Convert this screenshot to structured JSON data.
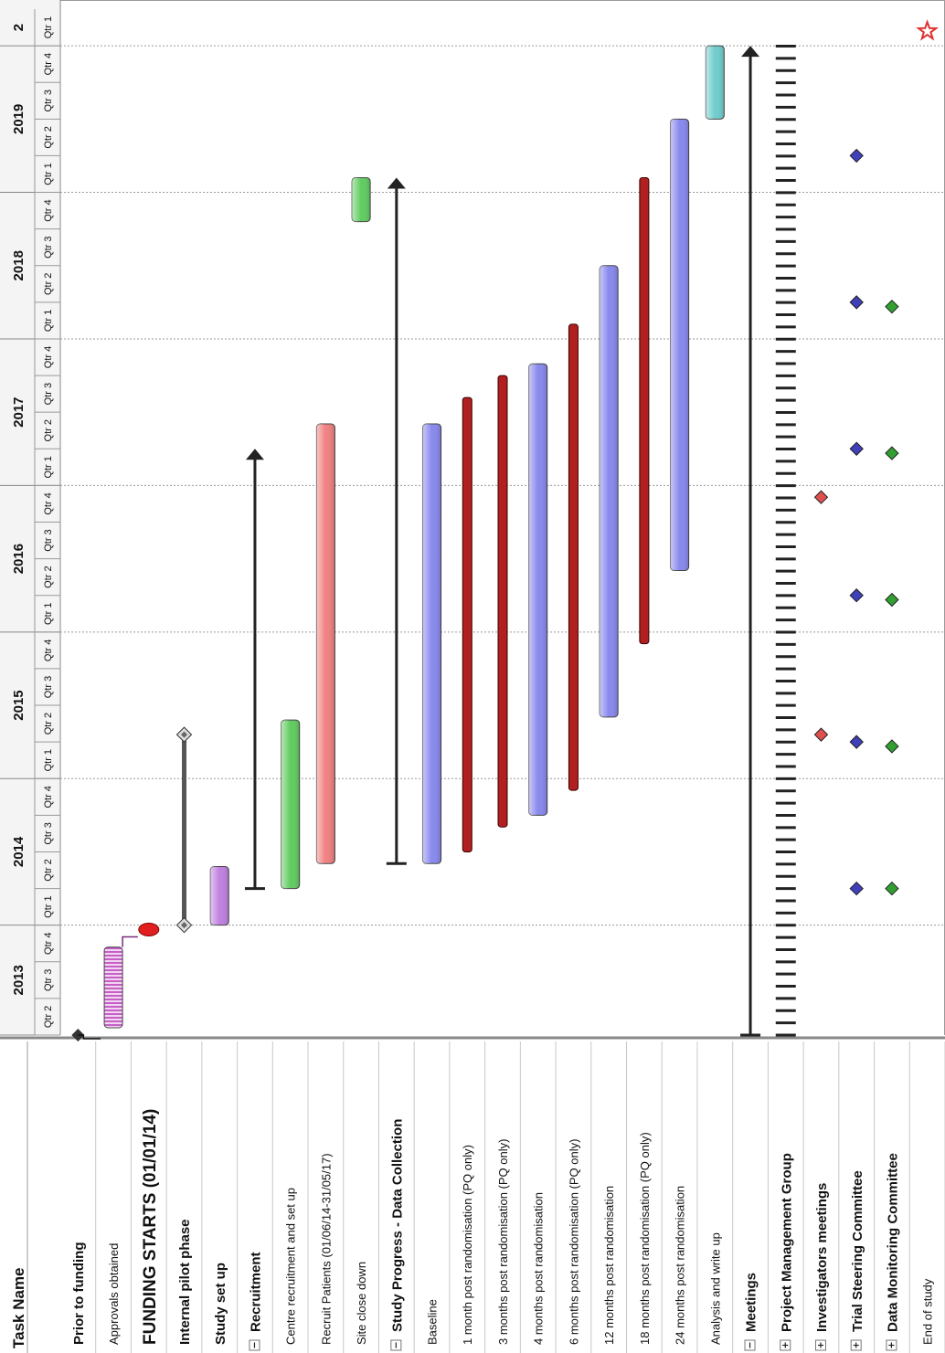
{
  "chart_data": {
    "type": "gantt",
    "orientation": "rotated 90 degrees clockwise (time runs from bottom to top, tasks from left to right)",
    "task_column_header": "Task Name",
    "timescale": {
      "years": [
        {
          "label": "2013",
          "quarters": [
            "Qtr 2",
            "Qtr 3",
            "Qtr 4"
          ]
        },
        {
          "label": "2014",
          "quarters": [
            "Qtr 1",
            "Qtr 2",
            "Qtr 3",
            "Qtr 4"
          ]
        },
        {
          "label": "2015",
          "quarters": [
            "Qtr 1",
            "Qtr 2",
            "Qtr 3",
            "Qtr 4"
          ]
        },
        {
          "label": "2016",
          "quarters": [
            "Qtr 1",
            "Qtr 2",
            "Qtr 3",
            "Qtr 4"
          ]
        },
        {
          "label": "2017",
          "quarters": [
            "Qtr 1",
            "Qtr 2",
            "Qtr 3",
            "Qtr 4"
          ]
        },
        {
          "label": "2018",
          "quarters": [
            "Qtr 1",
            "Qtr 2",
            "Qtr 3",
            "Qtr 4"
          ]
        },
        {
          "label": "2019",
          "quarters": [
            "Qtr 1",
            "Qtr 2",
            "Qtr 3",
            "Qtr 4"
          ]
        },
        {
          "label": "2",
          "quarters": [
            "Qtr 1"
          ]
        }
      ],
      "start": 2013.25,
      "end": 2020.25
    },
    "tasks": [
      {
        "name": "Prior to funding",
        "style": "normal",
        "toggle": "",
        "shape": "milestone",
        "date": 2013.25,
        "color": "#333333"
      },
      {
        "name": "Approvals obtained",
        "style": "small",
        "toggle": "",
        "shape": "hatched-bar",
        "start": 2013.3,
        "end": 2013.85,
        "color": "#cc44cc"
      },
      {
        "name": "FUNDING STARTS (01/01/14)",
        "style": "large",
        "toggle": "",
        "shape": "milestone",
        "date": 2013.97,
        "color": "#e02020"
      },
      {
        "name": "Internal pilot phase",
        "style": "normal",
        "toggle": "",
        "shape": "span",
        "start": 2014.0,
        "end": 2015.3,
        "color": "#555555"
      },
      {
        "name": "Study set up",
        "style": "normal",
        "toggle": "",
        "shape": "bar",
        "start": 2014.0,
        "end": 2014.4,
        "color": "#c080e0"
      },
      {
        "name": "Recruitment",
        "style": "normal",
        "toggle": "-",
        "shape": "summary",
        "start": 2014.25,
        "end": 2017.25,
        "color": "#222222"
      },
      {
        "name": "Centre recruitment and set up",
        "style": "small",
        "toggle": "",
        "shape": "bar",
        "start": 2014.25,
        "end": 2015.4,
        "color": "#60cc60"
      },
      {
        "name": "Recruit Patients (01/06/14-31/05/17)",
        "style": "small",
        "toggle": "",
        "shape": "bar",
        "start": 2014.42,
        "end": 2017.42,
        "color": "#f08080"
      },
      {
        "name": "Site close down",
        "style": "small",
        "toggle": "",
        "shape": "bar",
        "start": 2018.8,
        "end": 2019.1,
        "color": "#60cc60"
      },
      {
        "name": "Study Progress - Data Collection",
        "style": "normal",
        "toggle": "-",
        "shape": "summary",
        "start": 2014.42,
        "end": 2019.1,
        "color": "#222222"
      },
      {
        "name": "Baseline",
        "style": "small",
        "toggle": "",
        "shape": "bar",
        "start": 2014.42,
        "end": 2017.42,
        "color": "#8888ee"
      },
      {
        "name": "1 month post randomisation (PQ only)",
        "style": "small",
        "toggle": "",
        "shape": "thin-bar",
        "start": 2014.5,
        "end": 2017.6,
        "color": "#b02020"
      },
      {
        "name": "3 months post randomisation (PQ only)",
        "style": "small",
        "toggle": "",
        "shape": "thin-bar",
        "start": 2014.67,
        "end": 2017.75,
        "color": "#b02020"
      },
      {
        "name": "4 months post randomisation",
        "style": "small",
        "toggle": "",
        "shape": "bar",
        "start": 2014.75,
        "end": 2017.83,
        "color": "#8888ee"
      },
      {
        "name": "6 months post randomisation (PQ only)",
        "style": "small",
        "toggle": "",
        "shape": "thin-bar",
        "start": 2014.92,
        "end": 2018.1,
        "color": "#b02020"
      },
      {
        "name": "12 months post randomisation",
        "style": "small",
        "toggle": "",
        "shape": "bar",
        "start": 2015.42,
        "end": 2018.5,
        "color": "#8888ee"
      },
      {
        "name": "18 months post randomisation (PQ only)",
        "style": "small",
        "toggle": "",
        "shape": "thin-bar",
        "start": 2015.92,
        "end": 2019.1,
        "color": "#b02020"
      },
      {
        "name": "24 months post randomisation",
        "style": "small",
        "toggle": "",
        "shape": "bar",
        "start": 2016.42,
        "end": 2019.5,
        "color": "#8888ee"
      },
      {
        "name": "Analysis and write up",
        "style": "small",
        "toggle": "",
        "shape": "bar",
        "start": 2019.5,
        "end": 2020.0,
        "color": "#70cccc"
      },
      {
        "name": "Meetings",
        "style": "normal",
        "toggle": "-",
        "shape": "summary",
        "start": 2013.25,
        "end": 2020.0,
        "color": "#222222"
      },
      {
        "name": "Project Management Group",
        "style": "normal",
        "toggle": "+",
        "shape": "recurring",
        "start": 2013.25,
        "end": 2020.0,
        "color": "#222222"
      },
      {
        "name": "Investigators meetings",
        "style": "normal",
        "toggle": "+",
        "shape": "milestones",
        "dates": [
          2015.3,
          2016.92
        ],
        "color": "#e05050"
      },
      {
        "name": "Trial Steering Committee",
        "style": "normal",
        "toggle": "+",
        "shape": "milestones",
        "dates": [
          2014.25,
          2015.25,
          2016.25,
          2017.25,
          2018.25,
          2019.25
        ],
        "color": "#4040bb"
      },
      {
        "name": "Data Monitoring Committee",
        "style": "normal",
        "toggle": "+",
        "shape": "milestones",
        "dates": [
          2014.25,
          2015.22,
          2016.22,
          2017.22,
          2018.22
        ],
        "color": "#30a030"
      },
      {
        "name": "End of study",
        "style": "small",
        "toggle": "",
        "shape": "star",
        "date": 2020.1,
        "color": "#e03030"
      }
    ]
  }
}
